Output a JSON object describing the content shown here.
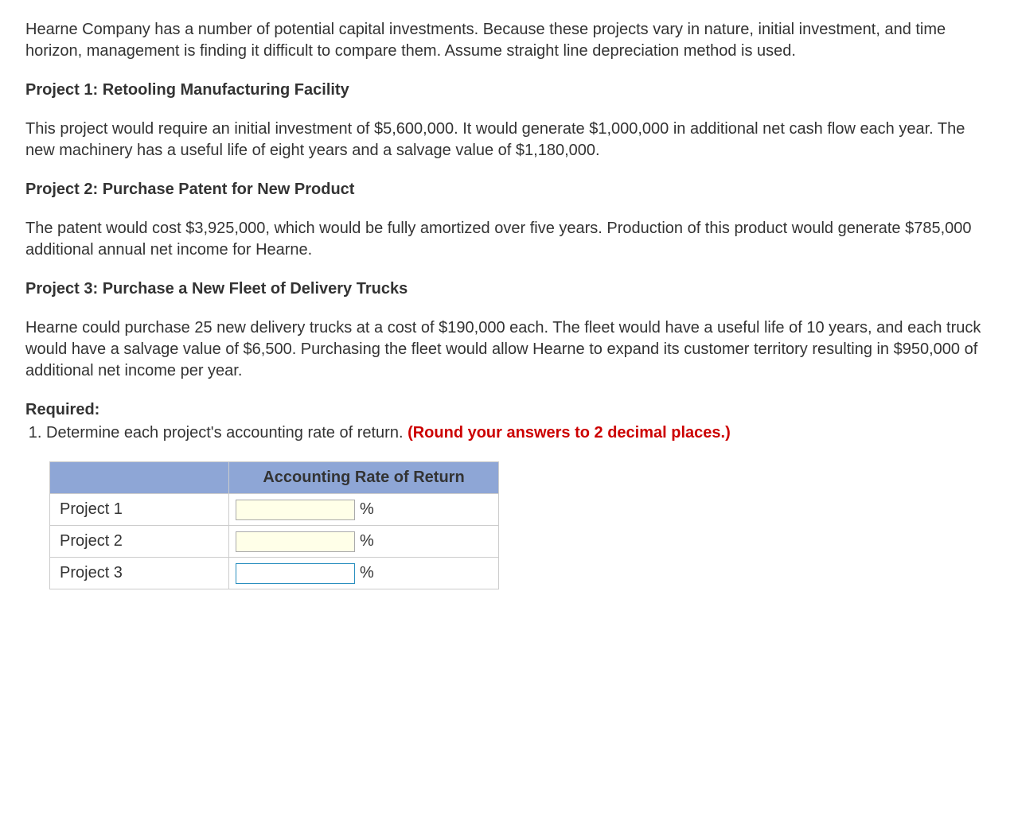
{
  "intro": "Hearne Company has a number of potential capital investments. Because these projects vary in nature, initial investment, and time horizon, management is finding it difficult to compare them. Assume straight line depreciation method is used.",
  "projects": {
    "p1": {
      "heading": "Project 1: Retooling Manufacturing Facility",
      "body": "This project would require an initial investment of $5,600,000. It would generate $1,000,000 in additional net cash flow each year. The new machinery has a useful life of eight years and a salvage value of $1,180,000."
    },
    "p2": {
      "heading": "Project 2: Purchase Patent for New Product",
      "body": "The patent would cost $3,925,000, which would be fully amortized over five years. Production of this product would generate $785,000 additional annual net income for Hearne."
    },
    "p3": {
      "heading": "Project 3: Purchase a New Fleet of Delivery Trucks",
      "body": "Hearne could purchase 25 new delivery trucks at a cost of $190,000 each. The fleet would have a useful life of 10 years, and each truck would have a salvage value of $6,500. Purchasing the fleet would allow Hearne to expand its customer territory resulting in $950,000 of additional net income per year."
    }
  },
  "required": {
    "label": "Required:",
    "item1_prefix": "Determine each project's accounting rate of return. ",
    "item1_red": "(Round your answers to 2 decimal places.)"
  },
  "table": {
    "column_header": "Accounting Rate of Return",
    "unit_symbol": "%",
    "rows": [
      {
        "label": "Project 1",
        "value": "",
        "focused": false
      },
      {
        "label": "Project 2",
        "value": "",
        "focused": false
      },
      {
        "label": "Project 3",
        "value": "",
        "focused": true
      }
    ],
    "header_bg": "#8ea6d6",
    "input_bg": "#ffffe8",
    "focus_border": "#2b8fbf"
  }
}
